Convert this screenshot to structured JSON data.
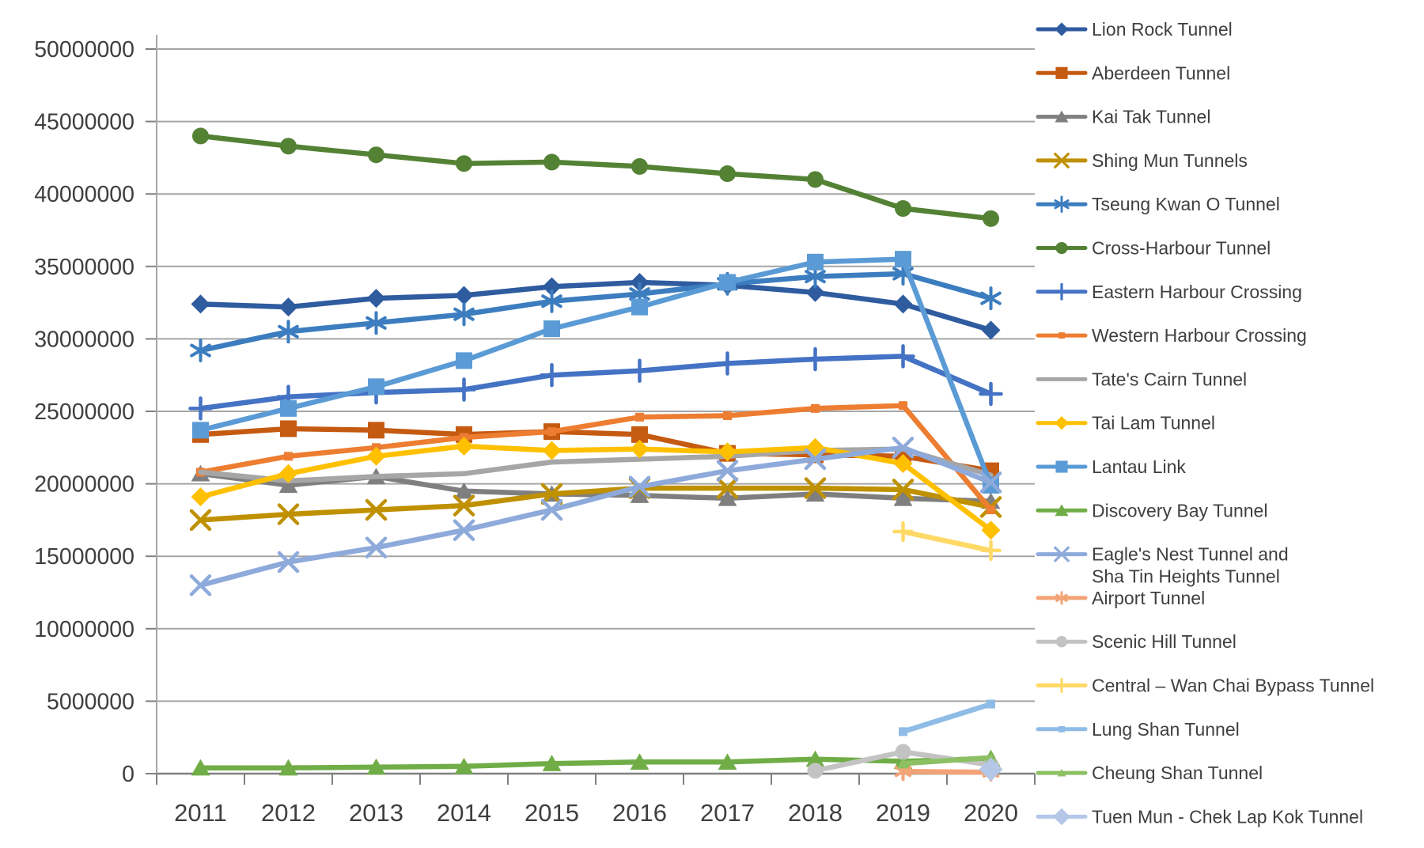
{
  "chart_data": {
    "type": "line",
    "title": "",
    "xlabel": "",
    "ylabel": "",
    "grid": true,
    "legend_position": "right",
    "background_color": "#FFFFFF",
    "gridline_color": "#A6A6A6",
    "axis_color": "#808080",
    "text_color": "#3F3F3F",
    "x_axis": {
      "tick_labels": [
        "2011",
        "2012",
        "2013",
        "2014",
        "2015",
        "2016",
        "2017",
        "2018",
        "2019",
        "2020"
      ]
    },
    "y_axis": {
      "min": 0,
      "max": 50000000,
      "tick_step": 5000000,
      "tick_labels": [
        "0",
        "5000000",
        "10000000",
        "15000000",
        "20000000",
        "25000000",
        "30000000",
        "35000000",
        "40000000",
        "45000000",
        "50000000"
      ]
    },
    "categories": [
      2011,
      2012,
      2013,
      2014,
      2015,
      2016,
      2017,
      2018,
      2019,
      2020
    ],
    "series": [
      {
        "name": "Lion Rock Tunnel",
        "color": "#2F5B9F",
        "marker": "diamond",
        "values": [
          32400000,
          32200000,
          32800000,
          33000000,
          33600000,
          33900000,
          33700000,
          33200000,
          32400000,
          30600000
        ]
      },
      {
        "name": "Aberdeen Tunnel",
        "color": "#C55A11",
        "marker": "square",
        "values": [
          23400000,
          23800000,
          23700000,
          23400000,
          23600000,
          23400000,
          22100000,
          22000000,
          21900000,
          20900000
        ]
      },
      {
        "name": "Kai Tak Tunnel",
        "color": "#7F7F7F",
        "marker": "triangle",
        "values": [
          20700000,
          19900000,
          20500000,
          19500000,
          19300000,
          19200000,
          19000000,
          19300000,
          19000000,
          18800000
        ]
      },
      {
        "name": "Shing Mun Tunnels",
        "color": "#BF9000",
        "marker": "x",
        "values": [
          17500000,
          17900000,
          18200000,
          18500000,
          19300000,
          19700000,
          19700000,
          19700000,
          19600000,
          18400000
        ]
      },
      {
        "name": "Tseung Kwan O Tunnel",
        "color": "#3C7DBF",
        "marker": "asterisk",
        "values": [
          29200000,
          30500000,
          31100000,
          31700000,
          32600000,
          33100000,
          33800000,
          34300000,
          34500000,
          32800000
        ]
      },
      {
        "name": "Cross-Harbour Tunnel",
        "color": "#548235",
        "marker": "circle",
        "values": [
          44000000,
          43300000,
          42700000,
          42100000,
          42200000,
          41900000,
          41400000,
          41000000,
          39000000,
          38300000
        ]
      },
      {
        "name": "Eastern Harbour Crossing",
        "color": "#4472C4",
        "marker": "plus",
        "values": [
          25200000,
          26000000,
          26300000,
          26500000,
          27500000,
          27800000,
          28300000,
          28600000,
          28800000,
          26200000
        ]
      },
      {
        "name": "Western Harbour Crossing",
        "color": "#ED7D31",
        "marker": "square-small",
        "values": [
          20800000,
          21900000,
          22500000,
          23200000,
          23600000,
          24600000,
          24700000,
          25200000,
          25400000,
          18200000
        ]
      },
      {
        "name": "Tate's Cairn Tunnel",
        "color": "#A6A6A6",
        "marker": "none",
        "values": [
          20800000,
          20200000,
          20500000,
          20700000,
          21500000,
          21700000,
          21900000,
          22300000,
          22400000,
          20600000
        ]
      },
      {
        "name": "Tai Lam Tunnel",
        "color": "#FFC000",
        "marker": "diamond",
        "values": [
          19100000,
          20700000,
          21900000,
          22600000,
          22300000,
          22400000,
          22200000,
          22500000,
          21400000,
          16800000
        ]
      },
      {
        "name": "Lantau Link",
        "color": "#5B9BD5",
        "marker": "square",
        "values": [
          23700000,
          25200000,
          26700000,
          28500000,
          30700000,
          32200000,
          33900000,
          35300000,
          35500000,
          19900000
        ]
      },
      {
        "name": "Discovery Bay Tunnel",
        "color": "#70AD47",
        "marker": "triangle",
        "values": [
          400000,
          400000,
          450000,
          500000,
          700000,
          800000,
          800000,
          1000000,
          850000,
          1050000
        ]
      },
      {
        "name": "Eagle's Nest Tunnel and",
        "name_line2": "Sha Tin Heights Tunnel",
        "color": "#8EAADB",
        "marker": "x",
        "values": [
          13000000,
          14600000,
          15600000,
          16800000,
          18200000,
          19800000,
          20900000,
          21700000,
          22500000,
          20100000
        ]
      },
      {
        "name": "Airport Tunnel",
        "color": "#F2A477",
        "marker": "asterisk-small",
        "values": [
          null,
          null,
          null,
          null,
          null,
          null,
          null,
          null,
          150000,
          100000
        ]
      },
      {
        "name": "Scenic Hill Tunnel",
        "color": "#C3C3C3",
        "marker": "circle-small",
        "values": [
          null,
          null,
          null,
          null,
          null,
          null,
          null,
          200000,
          1500000,
          600000
        ]
      },
      {
        "name": "Central – Wan Chai Bypass Tunnel",
        "color": "#FFD966",
        "marker": "plus-small",
        "values": [
          null,
          null,
          null,
          null,
          null,
          null,
          null,
          null,
          16700000,
          15400000
        ]
      },
      {
        "name": "Lung Shan Tunnel",
        "color": "#8FBCE6",
        "marker": "square-small",
        "values": [
          null,
          null,
          null,
          null,
          null,
          null,
          null,
          null,
          2900000,
          4800000
        ]
      },
      {
        "name": "Cheung Shan Tunnel",
        "color": "#8CC063",
        "marker": "triangle-small",
        "values": [
          null,
          null,
          null,
          null,
          null,
          null,
          null,
          null,
          700000,
          1100000
        ]
      },
      {
        "name": "Tuen Mun - Chek Lap Kok Tunnel",
        "color": "#B4C7E7",
        "marker": "diamond-large",
        "values": [
          null,
          null,
          null,
          null,
          null,
          null,
          null,
          null,
          null,
          300000
        ]
      }
    ]
  }
}
